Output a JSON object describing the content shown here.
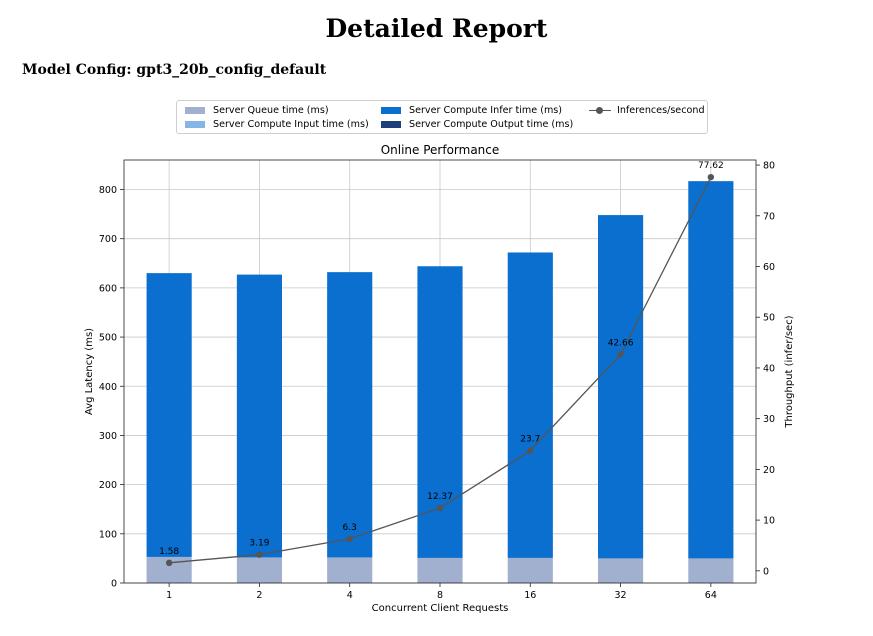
{
  "report": {
    "title": "Detailed Report",
    "model_config": "Model Config: gpt3_20b_config_default"
  },
  "legend": {
    "queue": "Server Queue time (ms)",
    "input": "Server Compute Input time (ms)",
    "infer": "Server Compute Infer time (ms)",
    "output": "Server Compute Output time (ms)",
    "throughput": "Inferences/second"
  },
  "colors": {
    "queue": "#a1b0cf",
    "input": "#86b6e6",
    "infer": "#0a6fce",
    "output": "#1f3f7a",
    "line": "#555555",
    "grid": "#c8c8c8"
  },
  "chart_data": {
    "type": "bar",
    "title": "Online Performance",
    "xlabel": "Concurrent Client Requests",
    "ylabel": "Avg Latency (ms)",
    "y2label": "Throughput (infer/sec)",
    "categories": [
      "1",
      "2",
      "4",
      "8",
      "16",
      "32",
      "64"
    ],
    "ylim": [
      0,
      860
    ],
    "y2lim": [
      -2.4,
      81
    ],
    "yticks": [
      0,
      100,
      200,
      300,
      400,
      500,
      600,
      700,
      800
    ],
    "y2ticks": [
      0,
      10,
      20,
      30,
      40,
      50,
      60,
      70,
      80
    ],
    "grid": true,
    "legend_position": "top-center",
    "series": [
      {
        "name": "Server Queue time (ms)",
        "key": "queue",
        "values": [
          53,
          52,
          52,
          51,
          51,
          50,
          50
        ]
      },
      {
        "name": "Server Compute Input time (ms)",
        "key": "input",
        "values": [
          0,
          0,
          0,
          0,
          0,
          0,
          0
        ]
      },
      {
        "name": "Server Compute Infer time (ms)",
        "key": "infer",
        "values": [
          577,
          575,
          580,
          593,
          621,
          698,
          767
        ]
      },
      {
        "name": "Server Compute Output time (ms)",
        "key": "output",
        "values": [
          0,
          0,
          0,
          0,
          0,
          0,
          0
        ]
      }
    ],
    "throughput": {
      "name": "Inferences/second",
      "values": [
        1.58,
        3.19,
        6.3,
        12.37,
        23.7,
        42.66,
        77.62
      ],
      "labels": [
        "1.58",
        "3.19",
        "6.3",
        "12.37",
        "23.7",
        "42.66",
        "77.62"
      ]
    }
  }
}
